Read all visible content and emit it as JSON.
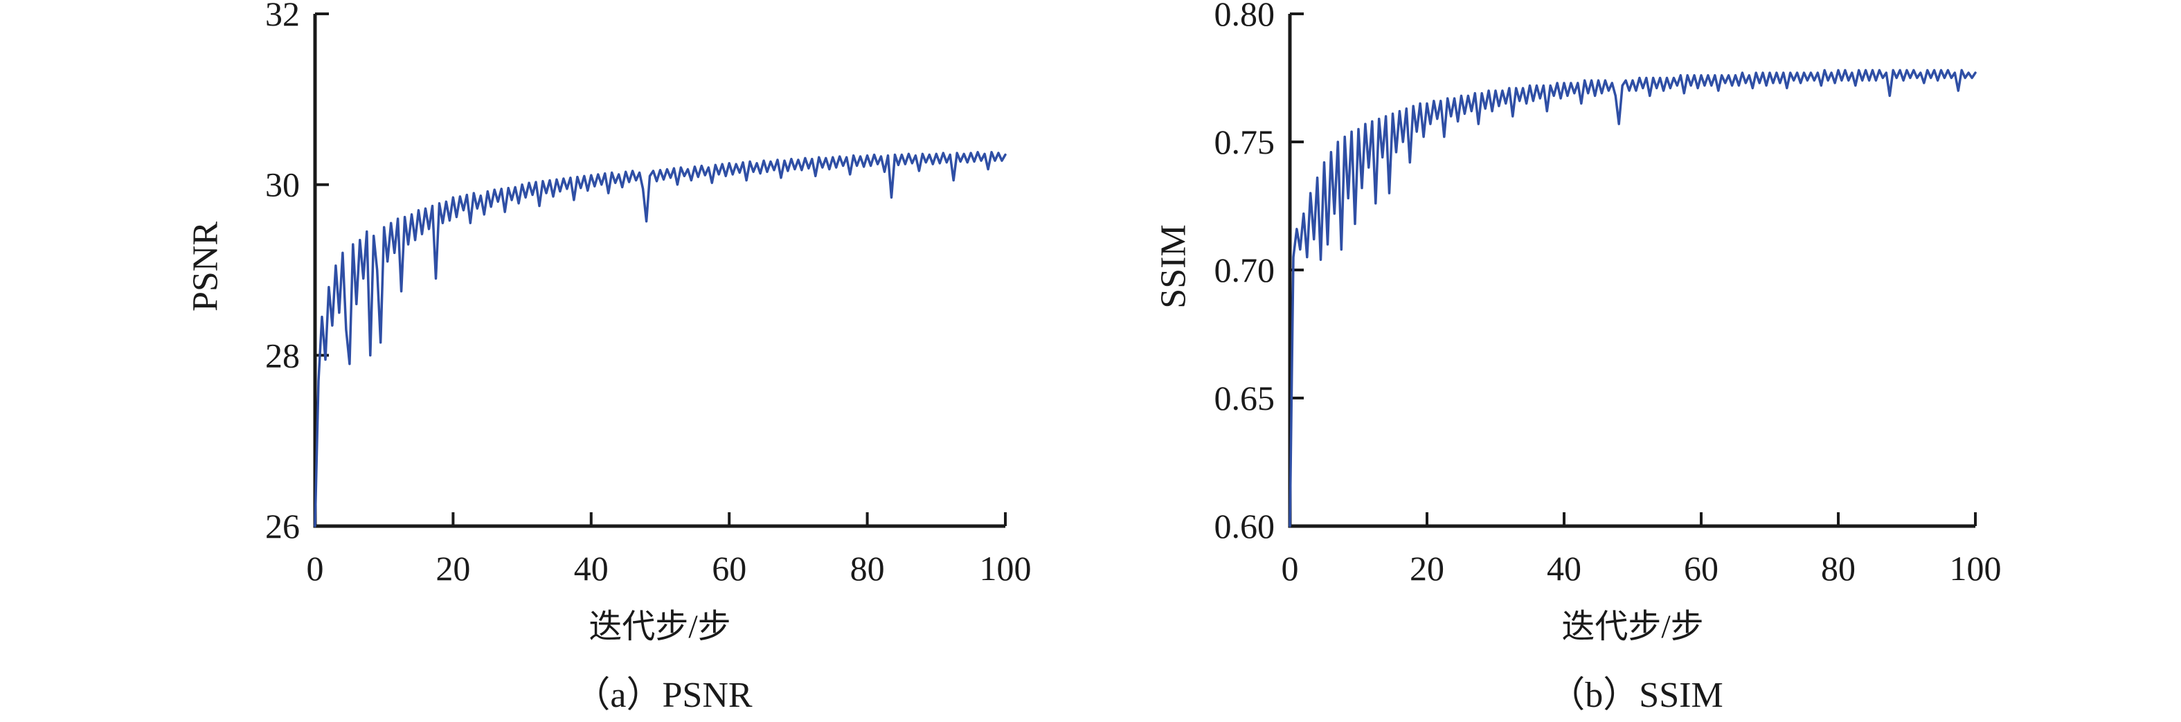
{
  "figure": {
    "background": "#ffffff",
    "axis_color": "#1a1a1a",
    "text_color": "#1a1a1a"
  },
  "chart_data": [
    {
      "type": "line",
      "caption": "（a）PSNR",
      "xlabel": "迭代步/步",
      "ylabel": "PSNR",
      "xlim": [
        0,
        100
      ],
      "ylim": [
        26,
        32
      ],
      "x_ticks": {
        "values": [
          0,
          20,
          40,
          60,
          80,
          100
        ],
        "labels": [
          "0",
          "20",
          "40",
          "60",
          "80",
          "100"
        ]
      },
      "y_ticks": {
        "values": [
          26,
          28,
          30,
          32
        ],
        "labels": [
          "26",
          "28",
          "30",
          "32"
        ]
      },
      "legend": "none",
      "grid": false,
      "line_color": "#2f4fa5",
      "x_start": 0,
      "x_step": 0.5,
      "values": [
        26.0,
        27.7,
        28.45,
        27.95,
        28.8,
        28.35,
        29.05,
        28.5,
        29.2,
        28.3,
        27.9,
        29.3,
        28.6,
        29.35,
        28.9,
        29.45,
        28.0,
        29.4,
        29.0,
        28.15,
        29.5,
        29.1,
        29.55,
        29.2,
        29.6,
        28.75,
        29.62,
        29.3,
        29.65,
        29.35,
        29.7,
        29.42,
        29.72,
        29.48,
        29.75,
        28.9,
        29.78,
        29.55,
        29.8,
        29.58,
        29.85,
        29.62,
        29.86,
        29.7,
        29.88,
        29.55,
        29.9,
        29.72,
        29.87,
        29.65,
        29.92,
        29.74,
        29.94,
        29.8,
        29.95,
        29.68,
        29.96,
        29.82,
        29.97,
        29.78,
        30.0,
        29.85,
        30.02,
        29.88,
        30.03,
        29.75,
        30.04,
        29.9,
        30.05,
        29.86,
        30.06,
        29.92,
        30.07,
        29.95,
        30.08,
        29.82,
        30.09,
        29.96,
        30.1,
        29.93,
        30.11,
        29.98,
        30.12,
        30.0,
        30.13,
        29.9,
        30.14,
        30.02,
        30.12,
        29.97,
        30.15,
        30.03,
        30.16,
        30.05,
        30.14,
        29.95,
        29.57,
        30.1,
        30.16,
        30.04,
        30.17,
        30.06,
        30.18,
        30.08,
        30.19,
        30.0,
        30.2,
        30.1,
        30.18,
        30.05,
        30.21,
        30.09,
        30.22,
        30.11,
        30.2,
        30.02,
        30.23,
        30.12,
        30.24,
        30.1,
        30.25,
        30.12,
        30.24,
        30.14,
        30.26,
        30.05,
        30.27,
        30.15,
        30.25,
        30.13,
        30.28,
        30.15,
        30.27,
        30.17,
        30.29,
        30.08,
        30.28,
        30.16,
        30.3,
        30.18,
        30.29,
        30.17,
        30.31,
        30.19,
        30.3,
        30.1,
        30.32,
        30.2,
        30.31,
        30.18,
        30.32,
        30.2,
        30.33,
        30.22,
        30.32,
        30.12,
        30.34,
        30.22,
        30.33,
        30.21,
        30.34,
        30.22,
        30.35,
        30.24,
        30.33,
        30.15,
        30.34,
        29.85,
        30.35,
        30.23,
        30.35,
        30.24,
        30.36,
        30.25,
        30.34,
        30.16,
        30.36,
        30.26,
        30.35,
        30.24,
        30.36,
        30.25,
        30.37,
        30.26,
        30.35,
        30.05,
        30.37,
        30.27,
        30.36,
        30.26,
        30.37,
        30.27,
        30.38,
        30.28,
        30.36,
        30.18,
        30.38,
        30.28,
        30.37,
        30.28,
        30.35
      ]
    },
    {
      "type": "line",
      "caption": "（b）SSIM",
      "xlabel": "迭代步/步",
      "ylabel": "SSIM",
      "xlim": [
        0,
        100
      ],
      "ylim": [
        0.6,
        0.8
      ],
      "x_ticks": {
        "values": [
          0,
          20,
          40,
          60,
          80,
          100
        ],
        "labels": [
          "0",
          "20",
          "40",
          "60",
          "80",
          "100"
        ]
      },
      "y_ticks": {
        "values": [
          0.6,
          0.65,
          0.7,
          0.75,
          0.8
        ],
        "labels": [
          "0.60",
          "0.65",
          "0.70",
          "0.75",
          "0.80"
        ]
      },
      "legend": "none",
      "grid": false,
      "line_color": "#2f4fa5",
      "x_start": 0,
      "x_step": 0.5,
      "values": [
        0.6,
        0.705,
        0.716,
        0.708,
        0.722,
        0.705,
        0.73,
        0.712,
        0.736,
        0.704,
        0.742,
        0.71,
        0.746,
        0.722,
        0.75,
        0.708,
        0.752,
        0.728,
        0.754,
        0.718,
        0.755,
        0.732,
        0.757,
        0.74,
        0.758,
        0.726,
        0.759,
        0.744,
        0.76,
        0.73,
        0.761,
        0.746,
        0.762,
        0.75,
        0.763,
        0.742,
        0.764,
        0.754,
        0.765,
        0.752,
        0.765,
        0.757,
        0.766,
        0.759,
        0.766,
        0.752,
        0.767,
        0.76,
        0.767,
        0.758,
        0.768,
        0.761,
        0.768,
        0.762,
        0.769,
        0.757,
        0.769,
        0.763,
        0.77,
        0.762,
        0.77,
        0.764,
        0.77,
        0.765,
        0.771,
        0.76,
        0.771,
        0.766,
        0.771,
        0.765,
        0.772,
        0.766,
        0.772,
        0.767,
        0.772,
        0.762,
        0.772,
        0.768,
        0.773,
        0.767,
        0.773,
        0.768,
        0.773,
        0.769,
        0.773,
        0.765,
        0.774,
        0.769,
        0.774,
        0.768,
        0.774,
        0.769,
        0.774,
        0.77,
        0.773,
        0.768,
        0.757,
        0.772,
        0.774,
        0.77,
        0.774,
        0.77,
        0.775,
        0.771,
        0.775,
        0.768,
        0.775,
        0.771,
        0.775,
        0.77,
        0.775,
        0.771,
        0.775,
        0.772,
        0.776,
        0.769,
        0.776,
        0.772,
        0.776,
        0.771,
        0.776,
        0.772,
        0.776,
        0.772,
        0.776,
        0.77,
        0.776,
        0.773,
        0.776,
        0.772,
        0.776,
        0.772,
        0.777,
        0.773,
        0.776,
        0.771,
        0.777,
        0.773,
        0.777,
        0.772,
        0.777,
        0.773,
        0.777,
        0.773,
        0.777,
        0.771,
        0.777,
        0.774,
        0.777,
        0.773,
        0.777,
        0.774,
        0.777,
        0.774,
        0.777,
        0.772,
        0.778,
        0.774,
        0.777,
        0.773,
        0.778,
        0.774,
        0.778,
        0.774,
        0.777,
        0.772,
        0.778,
        0.774,
        0.778,
        0.774,
        0.778,
        0.774,
        0.778,
        0.775,
        0.777,
        0.768,
        0.778,
        0.775,
        0.778,
        0.774,
        0.778,
        0.775,
        0.778,
        0.775,
        0.777,
        0.773,
        0.778,
        0.775,
        0.778,
        0.774,
        0.778,
        0.775,
        0.778,
        0.775,
        0.777,
        0.77,
        0.778,
        0.775,
        0.777,
        0.775,
        0.777
      ]
    }
  ]
}
